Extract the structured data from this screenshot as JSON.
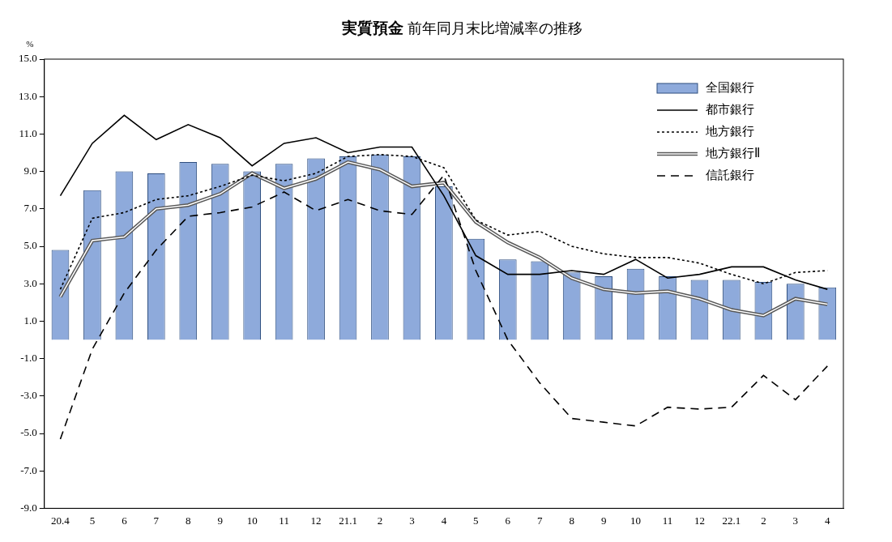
{
  "chart_data": {
    "type": "bar",
    "title": "実質預金 前年同月末比増減率の推移",
    "y_label": "%",
    "categories": [
      "20.4",
      "5",
      "6",
      "7",
      "8",
      "9",
      "10",
      "11",
      "12",
      "21.1",
      "2",
      "3",
      "4",
      "5",
      "6",
      "7",
      "8",
      "9",
      "10",
      "11",
      "12",
      "22.1",
      "2",
      "3",
      "4"
    ],
    "series": [
      {
        "name": "全国銀行",
        "type": "bar",
        "color": "#8eaadb",
        "values": [
          4.8,
          8.0,
          9.0,
          8.9,
          9.5,
          9.4,
          9.0,
          9.4,
          9.7,
          9.8,
          9.9,
          9.8,
          8.2,
          5.4,
          4.3,
          4.2,
          3.6,
          3.4,
          3.8,
          3.4,
          3.2,
          3.2,
          3.1,
          3.0,
          2.8
        ]
      },
      {
        "name": "都市銀行",
        "type": "line",
        "color": "#000000",
        "line_style": "solid",
        "values": [
          7.7,
          10.5,
          12.0,
          10.7,
          11.5,
          10.8,
          9.3,
          10.5,
          10.8,
          10.0,
          10.3,
          10.3,
          7.7,
          4.5,
          3.5,
          3.5,
          3.7,
          3.5,
          4.3,
          3.3,
          3.5,
          3.9,
          3.9,
          3.2,
          2.7
        ]
      },
      {
        "name": "地方銀行",
        "type": "line",
        "color": "#000000",
        "line_style": "dotted",
        "values": [
          2.7,
          6.5,
          6.8,
          7.5,
          7.7,
          8.2,
          8.8,
          8.5,
          8.9,
          9.8,
          9.9,
          9.8,
          9.2,
          6.4,
          5.6,
          5.8,
          5.0,
          4.6,
          4.4,
          4.4,
          4.1,
          3.5,
          3.0,
          3.6,
          3.7
        ]
      },
      {
        "name": "地方銀行Ⅱ",
        "type": "line",
        "color": "#595959",
        "line_style": "double",
        "values": [
          2.3,
          5.3,
          5.5,
          7.0,
          7.2,
          7.8,
          8.9,
          8.1,
          8.6,
          9.5,
          9.1,
          8.2,
          8.4,
          6.3,
          5.2,
          4.4,
          3.3,
          2.7,
          2.5,
          2.6,
          2.2,
          1.6,
          1.3,
          2.2,
          1.9
        ]
      },
      {
        "name": "信託銀行",
        "type": "line",
        "color": "#000000",
        "line_style": "dashed",
        "values": [
          -5.3,
          -0.5,
          2.5,
          4.8,
          6.6,
          6.8,
          7.1,
          7.9,
          6.9,
          7.5,
          6.9,
          6.7,
          8.8,
          3.7,
          0.0,
          -2.3,
          -4.2,
          -4.4,
          -4.6,
          -3.6,
          -3.7,
          -3.6,
          -1.9,
          -3.2,
          -1.4
        ]
      }
    ],
    "ylim": [
      -9,
      15
    ],
    "yticks": [
      {
        "value": -9,
        "label": "-9.0"
      },
      {
        "value": -7,
        "label": "-7.0"
      },
      {
        "value": -5,
        "label": "-5.0"
      },
      {
        "value": -3,
        "label": "-3.0"
      },
      {
        "value": -1,
        "label": "-1.0"
      },
      {
        "value": 1,
        "label": "1.0"
      },
      {
        "value": 3,
        "label": "3.0"
      },
      {
        "value": 5,
        "label": "5.0"
      },
      {
        "value": 7,
        "label": "7.0"
      },
      {
        "value": 9,
        "label": "9.0"
      },
      {
        "value": 11,
        "label": "11.0"
      },
      {
        "value": 13,
        "label": "13.0"
      },
      {
        "value": 15,
        "label": "15.0"
      }
    ],
    "grid": false,
    "legend": "top-right"
  }
}
